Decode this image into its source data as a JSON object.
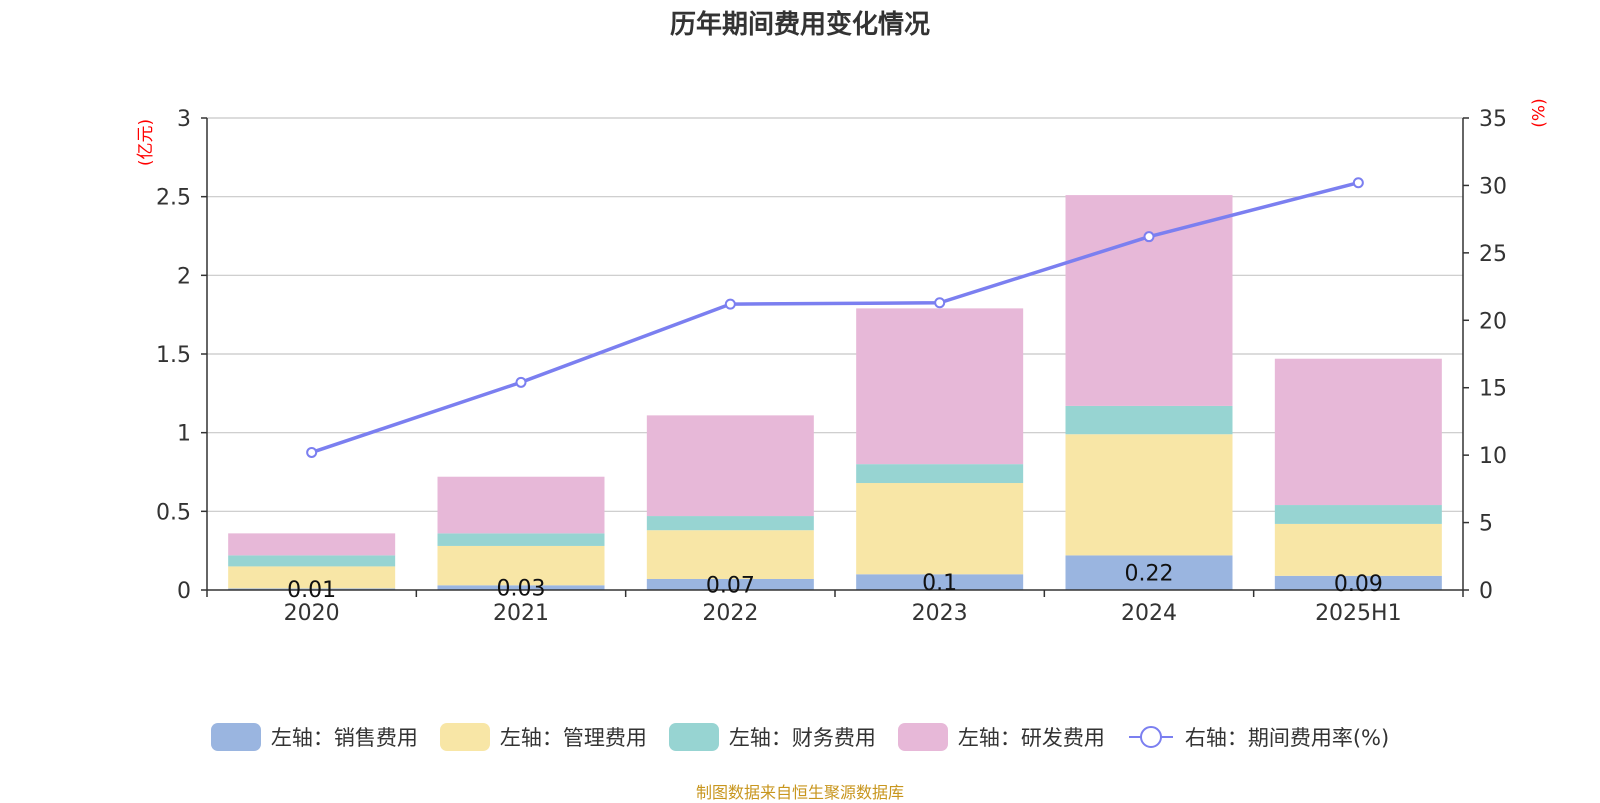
{
  "chart_data": {
    "type": "bar",
    "stacked": true,
    "title": "历年期间费用变化情况",
    "categories": [
      "2020",
      "2021",
      "2022",
      "2023",
      "2024",
      "2025H1"
    ],
    "y_left": {
      "unit": "(亿元)",
      "ylim": [
        0,
        3
      ],
      "ticks": [
        "0",
        "0.5",
        "1",
        "1.5",
        "2",
        "2.5",
        "3"
      ]
    },
    "y_right": {
      "unit": "(%)",
      "ylim": [
        0,
        35
      ],
      "ticks": [
        "0",
        "5",
        "10",
        "15",
        "20",
        "25",
        "30",
        "35"
      ]
    },
    "grid": true,
    "legend_position": "bottom",
    "series": [
      {
        "name": "左轴：销售费用",
        "color": "#9ab5e0",
        "axis": "left",
        "kind": "bar",
        "values": [
          0.01,
          0.03,
          0.07,
          0.1,
          0.22,
          0.09
        ],
        "labels": [
          "0.01",
          "0.03",
          "0.07",
          "0.1",
          "0.22",
          "0.09"
        ]
      },
      {
        "name": "左轴：管理费用",
        "color": "#f8e6a6",
        "axis": "left",
        "kind": "bar",
        "values": [
          0.14,
          0.25,
          0.31,
          0.58,
          0.77,
          0.33
        ]
      },
      {
        "name": "左轴：财务费用",
        "color": "#97d4d2",
        "axis": "left",
        "kind": "bar",
        "values": [
          0.07,
          0.08,
          0.09,
          0.12,
          0.18,
          0.12
        ]
      },
      {
        "name": "左轴：研发费用",
        "color": "#e7b8d8",
        "axis": "left",
        "kind": "bar",
        "values": [
          0.14,
          0.36,
          0.64,
          0.99,
          1.34,
          0.93
        ]
      },
      {
        "name": "右轴：期间费用率(%)",
        "color": "#7b7ff0",
        "axis": "right",
        "kind": "line",
        "values": [
          10.2,
          15.4,
          21.2,
          21.3,
          26.2,
          30.2
        ]
      }
    ]
  },
  "source": "制图数据来自恒生聚源数据库"
}
